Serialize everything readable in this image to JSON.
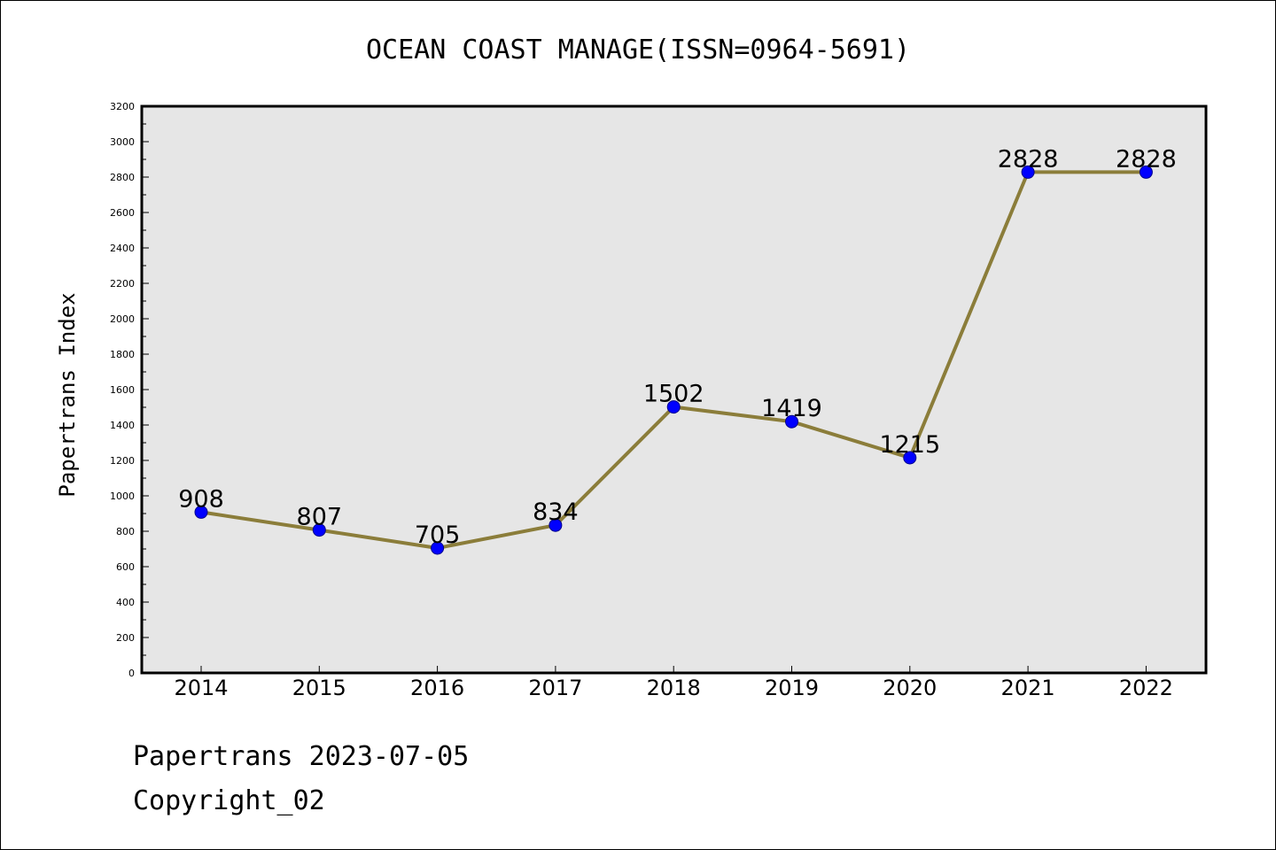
{
  "chart_data": {
    "type": "line",
    "title": "OCEAN COAST MANAGE(ISSN=0964-5691)",
    "xlabel": "",
    "ylabel": "Papertrans Index",
    "categories": [
      "2014",
      "2015",
      "2016",
      "2017",
      "2018",
      "2019",
      "2020",
      "2021",
      "2022"
    ],
    "series": [
      {
        "values": [
          908,
          807,
          705,
          834,
          1502,
          1419,
          1215,
          2828,
          2828
        ]
      }
    ],
    "ylim": [
      0,
      3200
    ],
    "yticks": [
      0,
      200,
      400,
      600,
      800,
      1000,
      1200,
      1400,
      1600,
      1800,
      2000,
      2200,
      2400,
      2600,
      2800,
      3000,
      3200
    ],
    "grid": false,
    "data_labels": true,
    "colors": {
      "line": "#8b7d3a",
      "marker": "#0000ff",
      "plot_background": "#e6e6e6"
    }
  },
  "footer": {
    "line1": "Papertrans 2023-07-05",
    "line2": "Copyright_02"
  }
}
